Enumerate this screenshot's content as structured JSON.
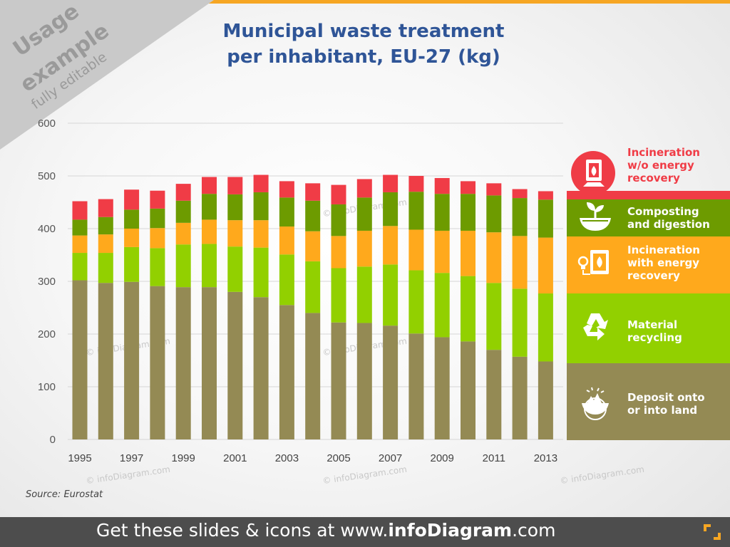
{
  "ribbon": {
    "line1": "Usage",
    "line2": "example",
    "line3": "fully editable"
  },
  "title_line1": "Municipal waste treatment",
  "title_line2": "per inhabitant, EU-27 (kg)",
  "source": "Source: Eurostat",
  "footer": {
    "prefix": "Get these slides & icons at www.",
    "brand": "infoDiagram",
    "suffix": ".com"
  },
  "watermark": "© infoDiagram.com",
  "colors": {
    "deposit": "#948a54",
    "recycling": "#92d000",
    "incineration_energy": "#ffa91c",
    "composting": "#6d9b00",
    "incineration_no_energy": "#f03c46",
    "title": "#2f5597",
    "footer": "#4d4d4d",
    "accent": "#f6a623"
  },
  "legend": [
    {
      "key": "incineration_no_energy",
      "label1": "Incineration",
      "label2": "w/o energy",
      "label3": "recovery",
      "icon": "fire-box-icon"
    },
    {
      "key": "composting",
      "label1": "Composting",
      "label2": "and digestion",
      "label3": "",
      "icon": "sprout-bowl-icon"
    },
    {
      "key": "incineration_energy",
      "label1": "Incineration",
      "label2": "with energy",
      "label3": "recovery",
      "icon": "bulb-fire-icon"
    },
    {
      "key": "recycling",
      "label1": "Material",
      "label2": "recycling",
      "label3": "",
      "icon": "recycle-icon"
    },
    {
      "key": "deposit",
      "label1": "Deposit onto",
      "label2": "or into land",
      "label3": "",
      "icon": "landfill-icon"
    }
  ],
  "chart_data": {
    "type": "bar",
    "stacked": true,
    "title": "Municipal waste treatment per inhabitant, EU-27 (kg)",
    "categories": [
      "1995",
      "1996",
      "1997",
      "1998",
      "1999",
      "2000",
      "2001",
      "2002",
      "2003",
      "2004",
      "2005",
      "2006",
      "2007",
      "2008",
      "2009",
      "2010",
      "2011",
      "2012",
      "2013"
    ],
    "x_tick_labels": [
      "1995",
      "",
      "1997",
      "",
      "1999",
      "",
      "2001",
      "",
      "2003",
      "",
      "2005",
      "",
      "2007",
      "",
      "2009",
      "",
      "2011",
      "",
      "2013"
    ],
    "ylim": [
      0,
      600
    ],
    "y_ticks": [
      0,
      100,
      200,
      300,
      400,
      500,
      600
    ],
    "grid": true,
    "legend_position": "right",
    "series": [
      {
        "name": "Deposit onto or into land",
        "key": "deposit",
        "values": [
          302,
          297,
          299,
          291,
          289,
          289,
          280,
          270,
          255,
          240,
          222,
          221,
          216,
          201,
          194,
          186,
          170,
          157,
          148
        ]
      },
      {
        "name": "Material recycling",
        "key": "recycling",
        "values": [
          52,
          57,
          66,
          72,
          81,
          82,
          86,
          94,
          96,
          98,
          103,
          107,
          116,
          120,
          122,
          124,
          127,
          129,
          129
        ]
      },
      {
        "name": "Incineration with energy recovery",
        "key": "incineration_energy",
        "values": [
          33,
          35,
          35,
          38,
          41,
          46,
          50,
          52,
          53,
          57,
          61,
          68,
          73,
          77,
          80,
          86,
          96,
          100,
          106
        ]
      },
      {
        "name": "Composting and digestion",
        "key": "composting",
        "values": [
          30,
          33,
          36,
          37,
          42,
          49,
          49,
          53,
          55,
          58,
          60,
          63,
          64,
          72,
          70,
          70,
          70,
          72,
          72
        ]
      },
      {
        "name": "Incineration w/o energy recovery",
        "key": "incineration_no_energy",
        "values": [
          35,
          34,
          38,
          34,
          32,
          32,
          33,
          33,
          31,
          33,
          37,
          35,
          33,
          30,
          30,
          24,
          23,
          17,
          16
        ]
      }
    ]
  }
}
